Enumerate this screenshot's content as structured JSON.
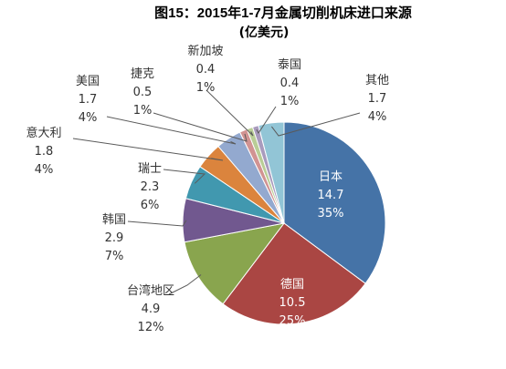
{
  "chart_data": {
    "type": "pie",
    "title": "图15：2015年1-7月金属切削机床进口来源",
    "subtitle": "(亿美元)",
    "legend": "none",
    "slices": [
      {
        "label": "日本",
        "value": 14.7,
        "percent": "35%",
        "color": "#4573a7"
      },
      {
        "label": "德国",
        "value": 10.5,
        "percent": "25%",
        "color": "#aa4643"
      },
      {
        "label": "台湾地区",
        "value": 4.9,
        "percent": "12%",
        "color": "#89a54e"
      },
      {
        "label": "韩国",
        "value": 2.9,
        "percent": "7%",
        "color": "#71588f"
      },
      {
        "label": "瑞士",
        "value": 2.3,
        "percent": "6%",
        "color": "#4198af"
      },
      {
        "label": "意大利",
        "value": 1.8,
        "percent": "4%",
        "color": "#db843d"
      },
      {
        "label": "美国",
        "value": 1.7,
        "percent": "4%",
        "color": "#93a9cf"
      },
      {
        "label": "捷克",
        "value": 0.5,
        "percent": "1%",
        "color": "#d19392"
      },
      {
        "label": "新加坡",
        "value": 0.4,
        "percent": "1%",
        "color": "#b9cd96"
      },
      {
        "label": "泰国",
        "value": 0.4,
        "percent": "1%",
        "color": "#a99bbd"
      },
      {
        "label": "其他",
        "value": 1.7,
        "percent": "4%",
        "color": "#92c5d6"
      }
    ]
  }
}
